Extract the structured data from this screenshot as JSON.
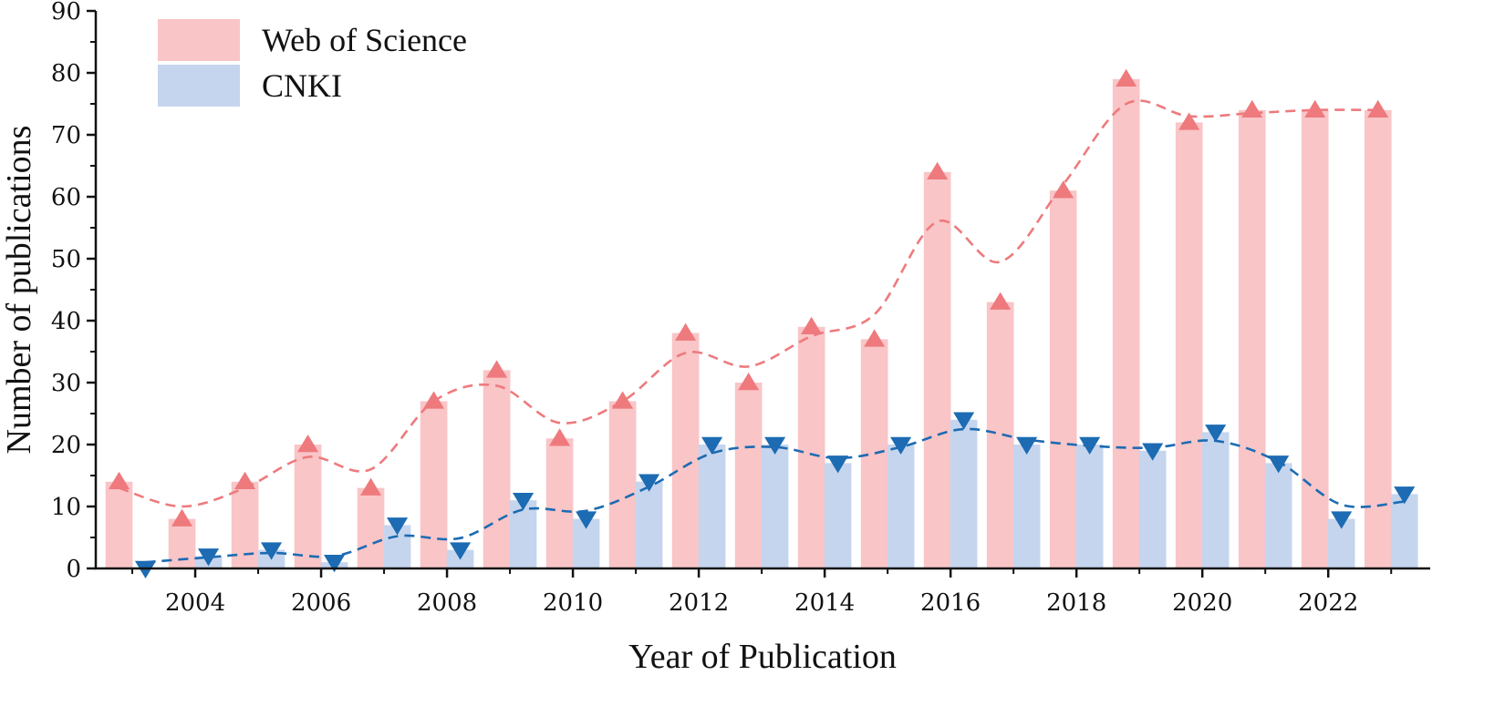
{
  "chart_data": {
    "type": "bar",
    "title": "",
    "xlabel": "Year of Publication",
    "ylabel": "Number of publications",
    "ylim": [
      0,
      90
    ],
    "yticks": [
      0,
      10,
      20,
      30,
      40,
      50,
      60,
      70,
      80,
      90
    ],
    "xticks": [
      2004,
      2006,
      2008,
      2010,
      2012,
      2014,
      2016,
      2018,
      2020,
      2022
    ],
    "categories": [
      2003,
      2004,
      2005,
      2006,
      2007,
      2008,
      2009,
      2010,
      2011,
      2012,
      2013,
      2014,
      2015,
      2016,
      2017,
      2018,
      2019,
      2020,
      2021,
      2022,
      2023
    ],
    "legend_position": "top-left",
    "series": [
      {
        "name": "Web of Science",
        "bar_color": "#f9c5c7",
        "marker_color": "#ee7a7d",
        "marker": "triangle-up",
        "trend_style": "dashed",
        "values": [
          14,
          8,
          14,
          20,
          13,
          27,
          32,
          21,
          27,
          38,
          30,
          39,
          37,
          64,
          43,
          61,
          79,
          72,
          74,
          74,
          74
        ],
        "trend": [
          13,
          10,
          13,
          18,
          16,
          27,
          29.5,
          23.5,
          27,
          34.8,
          32.6,
          37.5,
          41,
          56,
          49.5,
          62,
          75,
          73,
          73.5,
          74,
          74
        ]
      },
      {
        "name": "CNKI",
        "bar_color": "#c6d5ee",
        "marker_color": "#1c6bb3",
        "marker": "triangle-down",
        "trend_style": "dashed",
        "values": [
          0,
          2,
          3,
          1,
          7,
          3,
          11,
          8,
          14,
          20,
          20,
          17,
          20,
          24,
          20,
          20,
          19,
          22,
          17,
          8,
          12
        ],
        "trend": [
          1,
          1.8,
          2.5,
          2,
          5.2,
          4.9,
          9.5,
          9.3,
          13.2,
          18.6,
          19.6,
          17.8,
          19.6,
          22.5,
          20.8,
          19.8,
          19.5,
          20.6,
          17.2,
          10.3,
          10.8
        ]
      }
    ]
  }
}
